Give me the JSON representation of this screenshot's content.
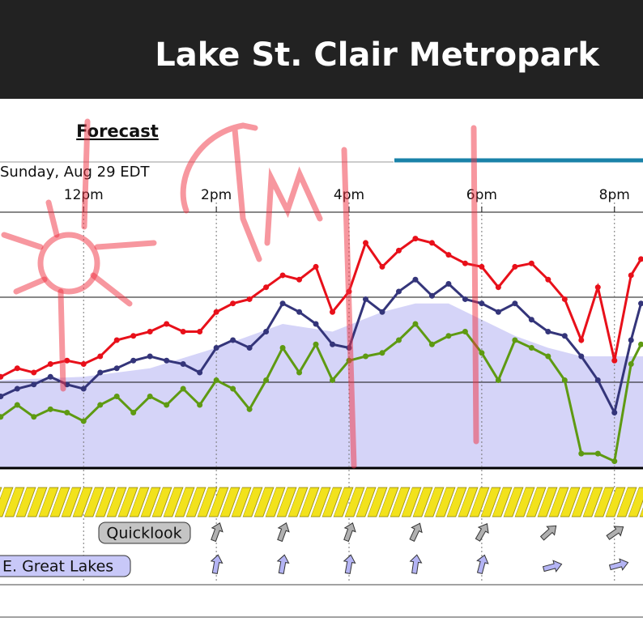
{
  "header": {
    "title": "Lake St. Clair Metropark"
  },
  "tabs": {
    "forecast": "Forecast"
  },
  "models": [
    "Quicklook",
    "E. Great Lakes"
  ],
  "chart_data": {
    "type": "line",
    "subtitle": "Sunday, Aug 29 EDT",
    "x": [
      10.75,
      11,
      11.25,
      11.5,
      11.75,
      12,
      12.25,
      12.5,
      12.75,
      13,
      13.25,
      13.5,
      13.75,
      14,
      14.25,
      14.5,
      14.75,
      15,
      15.25,
      15.5,
      15.75,
      16,
      16.25,
      16.5,
      16.75,
      17,
      17.25,
      17.5,
      17.75,
      18,
      18.25,
      18.5,
      18.75,
      19,
      19.25,
      19.5,
      19.75,
      20,
      20.25,
      20.4
    ],
    "xlim": [
      10.74,
      20.43
    ],
    "xticks": [
      {
        "value": 12,
        "label": "12pm"
      },
      {
        "value": 14,
        "label": "2pm"
      },
      {
        "value": 16,
        "label": "4pm"
      },
      {
        "value": 18,
        "label": "6pm"
      },
      {
        "value": 20,
        "label": "8pm"
      }
    ],
    "ylim": [
      0,
      30
    ],
    "series": [
      {
        "color": "#e8101a",
        "values": [
          10.7,
          11.7,
          11.2,
          12.2,
          12.6,
          12.2,
          13.1,
          15.0,
          15.5,
          16.0,
          16.9,
          16.0,
          16.0,
          18.3,
          19.3,
          19.8,
          21.2,
          22.6,
          22.1,
          23.6,
          18.3,
          20.7,
          26.4,
          23.6,
          25.5,
          26.9,
          26.4,
          25.0,
          24.0,
          23.6,
          21.2,
          23.6,
          24.0,
          22.1,
          19.8,
          15.0,
          21.2,
          12.6,
          22.6,
          24.5
        ]
      },
      {
        "color": "#34357a",
        "values": [
          8.4,
          9.3,
          9.8,
          10.7,
          9.8,
          9.3,
          11.2,
          11.7,
          12.6,
          13.1,
          12.6,
          12.2,
          11.2,
          14.1,
          15.0,
          14.1,
          16.0,
          19.3,
          18.3,
          16.9,
          14.5,
          14.1,
          19.8,
          18.3,
          20.7,
          22.1,
          20.2,
          21.6,
          19.8,
          19.3,
          18.3,
          19.3,
          17.4,
          16.0,
          15.5,
          13.1,
          10.3,
          6.5,
          15.0,
          19.3
        ]
      },
      {
        "color": "#5e9a12",
        "values": [
          6.0,
          7.4,
          6.0,
          6.9,
          6.5,
          5.5,
          7.4,
          8.4,
          6.5,
          8.4,
          7.4,
          9.3,
          7.4,
          10.3,
          9.3,
          6.9,
          10.3,
          14.1,
          11.2,
          14.5,
          10.3,
          12.6,
          13.1,
          13.5,
          15.0,
          16.9,
          14.5,
          15.5,
          16.0,
          13.5,
          10.3,
          15.0,
          14.1,
          13.1,
          10.3,
          1.7,
          1.7,
          0.8,
          12.2,
          14.5
        ]
      }
    ],
    "area": {
      "color": "#d5d4f8",
      "x": [
        10.74,
        12,
        13,
        14,
        15,
        15.75,
        16.5,
        17,
        17.5,
        18,
        18.5,
        19,
        19.5,
        20,
        20.43
      ],
      "values": [
        10.3,
        10.7,
        11.7,
        14.1,
        16.9,
        16.0,
        18.3,
        19.3,
        19.3,
        17.4,
        15.5,
        14.1,
        13.1,
        13.1,
        13.1
      ]
    }
  }
}
